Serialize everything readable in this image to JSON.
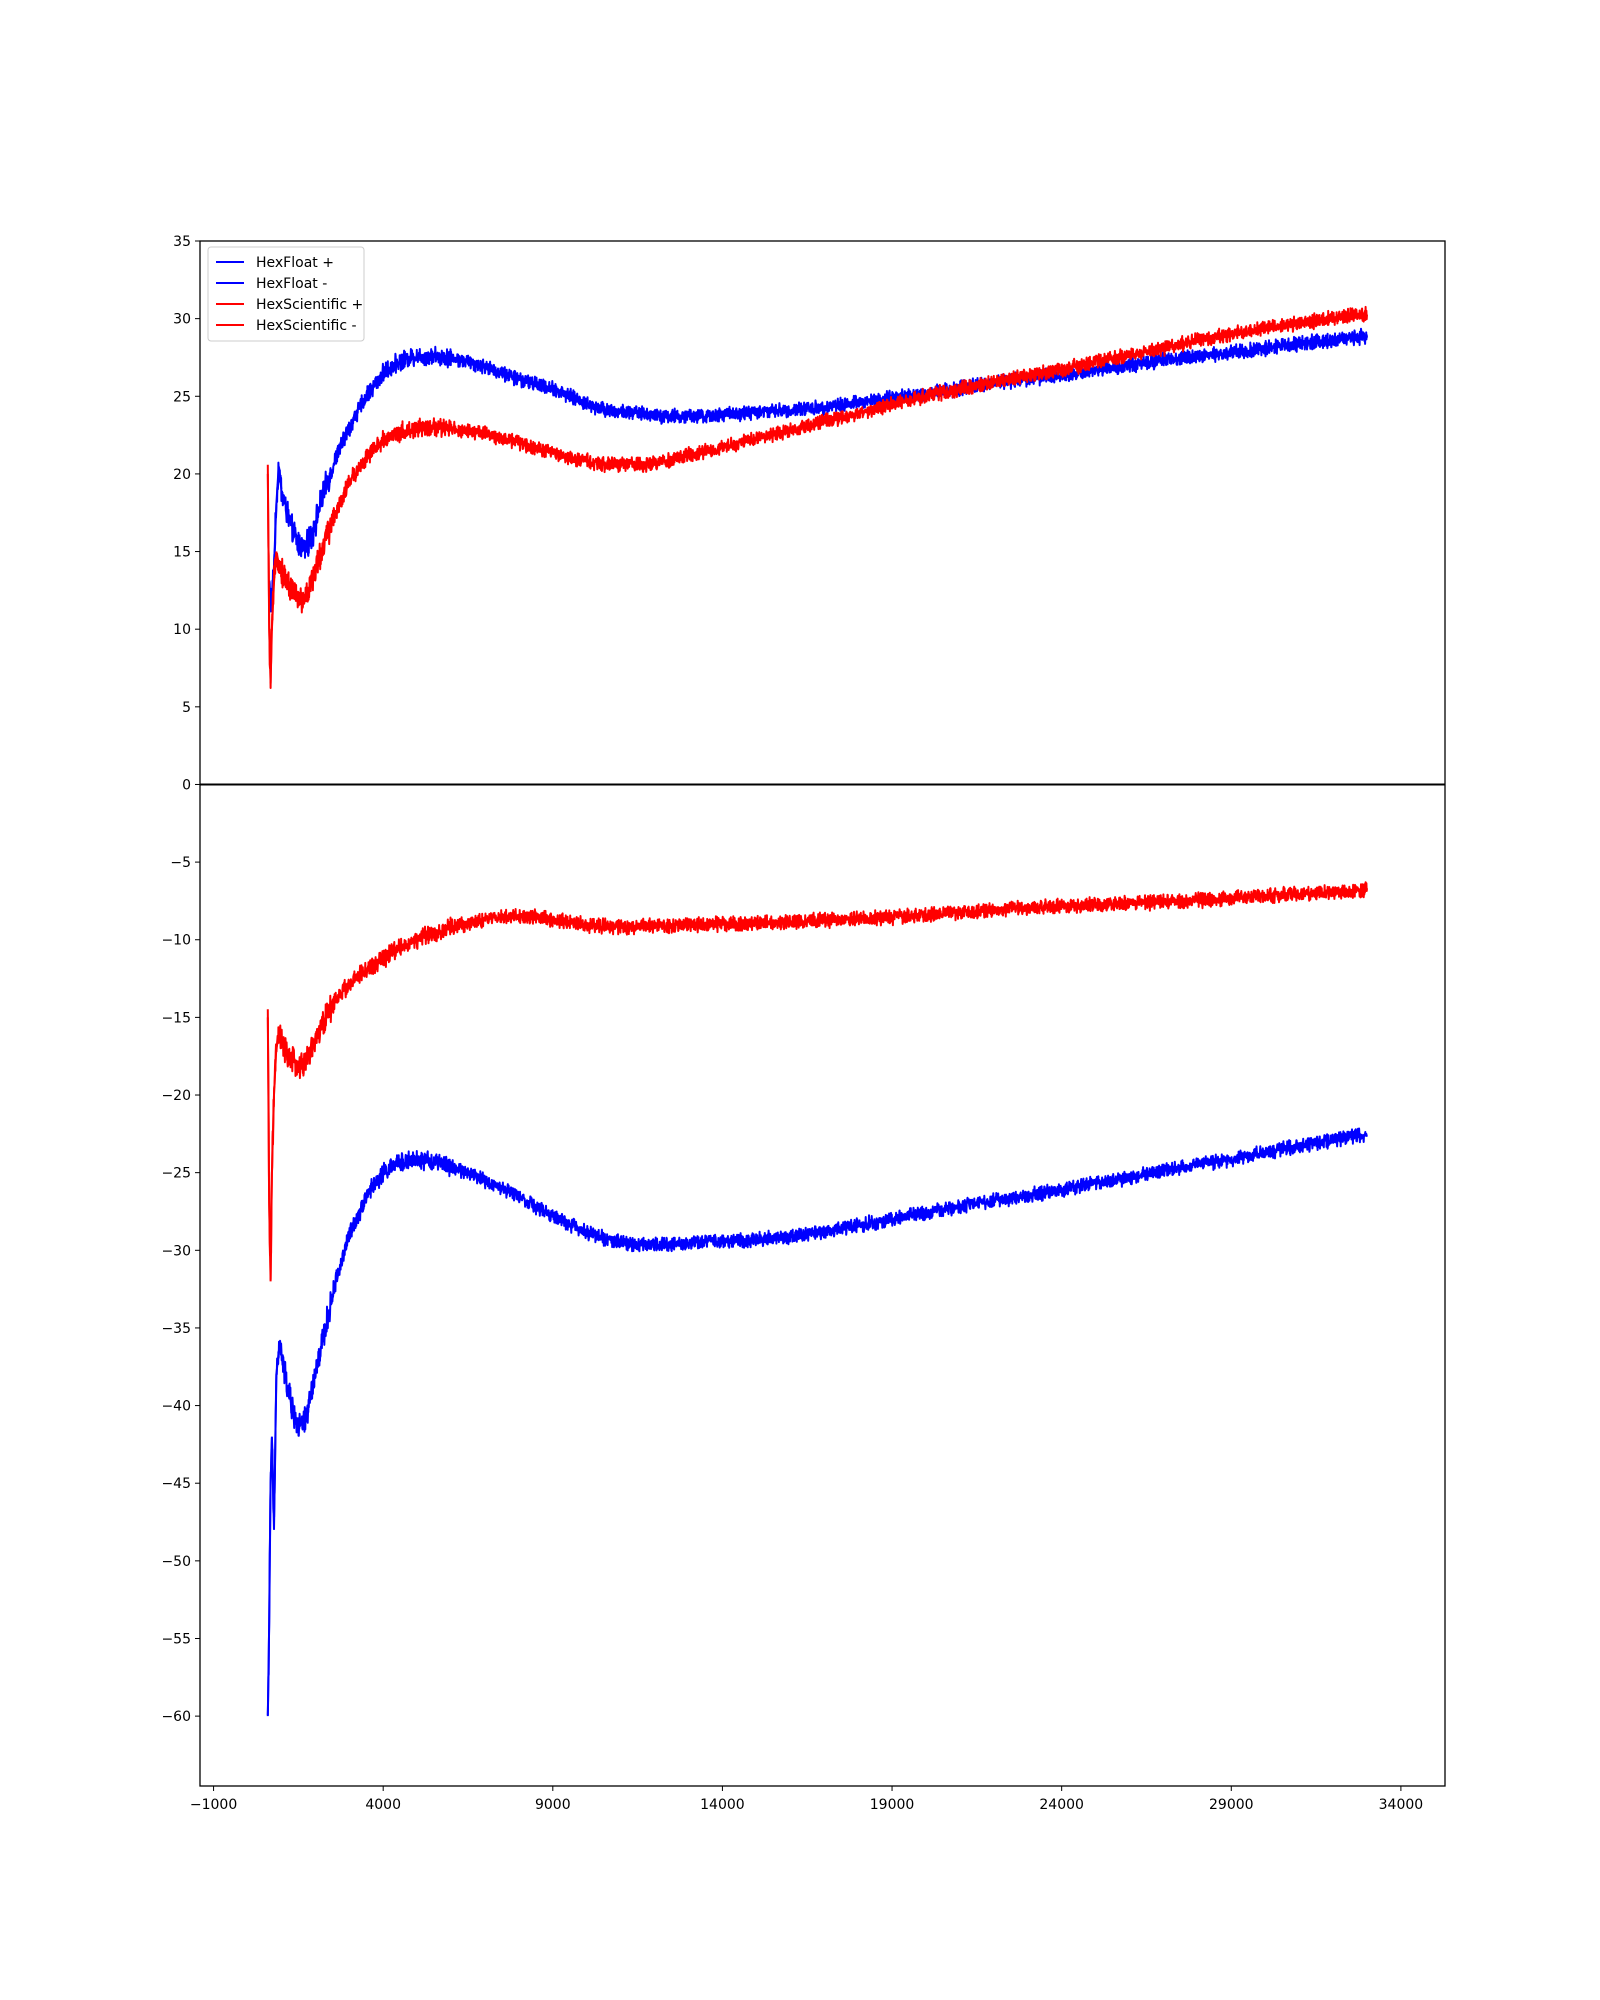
{
  "chart_data": {
    "type": "line",
    "title": "",
    "xlabel": "",
    "ylabel": "",
    "xlim": [
      -1400,
      35300
    ],
    "ylim": [
      -64.5,
      35
    ],
    "x_ticks": [
      -1000,
      4000,
      9000,
      14000,
      19000,
      24000,
      29000,
      34000
    ],
    "x_tick_labels": [
      "−1000",
      "4000",
      "9000",
      "14000",
      "19000",
      "24000",
      "29000",
      "34000"
    ],
    "y_ticks": [
      35,
      30,
      25,
      20,
      15,
      10,
      5,
      0,
      -5,
      -10,
      -15,
      -20,
      -25,
      -30,
      -35,
      -40,
      -45,
      -50,
      -55,
      -60
    ],
    "y_tick_labels": [
      "35",
      "30",
      "25",
      "20",
      "15",
      "10",
      "5",
      "0",
      "−5",
      "−10",
      "−15",
      "−20",
      "−25",
      "−30",
      "−35",
      "−40",
      "−45",
      "−50",
      "−55",
      "−60"
    ],
    "grid": false,
    "zero_line": true,
    "legend_position": "top-left",
    "series": [
      {
        "name": "HexFloat +",
        "color": "#0000ff",
        "x": [
          640,
          700,
          780,
          850,
          920,
          1000,
          1100,
          1300,
          1500,
          1700,
          1900,
          2200,
          2600,
          3000,
          3500,
          4000,
          4500,
          5000,
          5500,
          6000,
          6500,
          7000,
          7500,
          8000,
          8500,
          9000,
          9500,
          10000,
          10500,
          11000,
          11500,
          12000,
          12500,
          13000,
          13500,
          14000,
          15000,
          16000,
          17000,
          18000,
          19000,
          20000,
          21000,
          22000,
          23000,
          24000,
          25000,
          26000,
          27000,
          28000,
          29000,
          30000,
          31000,
          32000,
          33000
        ],
        "y": [
          13,
          11.5,
          14,
          18,
          20.5,
          19,
          18,
          16.5,
          15.5,
          15.2,
          16,
          18.5,
          21,
          23,
          25,
          26.5,
          27.3,
          27.6,
          27.6,
          27.5,
          27.2,
          26.9,
          26.5,
          26.1,
          25.8,
          25.5,
          25,
          24.5,
          24.2,
          24,
          23.9,
          23.8,
          23.7,
          23.7,
          23.7,
          23.8,
          24,
          24.1,
          24.3,
          24.6,
          24.9,
          25.2,
          25.5,
          25.9,
          26.1,
          26.4,
          26.7,
          27,
          27.3,
          27.6,
          27.8,
          28.1,
          28.4,
          28.6,
          28.9
        ]
      },
      {
        "name": "HexFloat -",
        "color": "#0000ff",
        "x": [
          600,
          640,
          680,
          720,
          780,
          850,
          950,
          1100,
          1300,
          1500,
          1700,
          1900,
          2200,
          2600,
          3000,
          3500,
          4000,
          4500,
          5000,
          5500,
          6000,
          6500,
          7000,
          7500,
          8000,
          8500,
          9000,
          9500,
          10000,
          10500,
          11000,
          11500,
          12000,
          12500,
          13000,
          14000,
          15000,
          16000,
          17000,
          18000,
          19000,
          20000,
          21000,
          22000,
          23000,
          24000,
          25000,
          26000,
          27000,
          28000,
          29000,
          30000,
          31000,
          32000,
          33000
        ],
        "y": [
          -60,
          -54,
          -45,
          -42,
          -48,
          -38,
          -36,
          -38,
          -40,
          -41.5,
          -41,
          -39,
          -36,
          -32,
          -29,
          -26.5,
          -25,
          -24.3,
          -24.2,
          -24.3,
          -24.6,
          -25,
          -25.5,
          -26,
          -26.5,
          -27.2,
          -27.8,
          -28.3,
          -28.8,
          -29.2,
          -29.5,
          -29.6,
          -29.6,
          -29.6,
          -29.5,
          -29.4,
          -29.3,
          -29.1,
          -28.8,
          -28.4,
          -28,
          -27.6,
          -27.2,
          -26.8,
          -26.5,
          -26.1,
          -25.7,
          -25.3,
          -24.9,
          -24.5,
          -24.1,
          -23.7,
          -23.3,
          -22.9,
          -22.5
        ]
      },
      {
        "name": "HexScientific +",
        "color": "#ff0000",
        "x": [
          600,
          640,
          680,
          720,
          780,
          850,
          950,
          1050,
          1200,
          1400,
          1600,
          1800,
          2100,
          2500,
          3000,
          3500,
          4000,
          4500,
          5000,
          5500,
          6000,
          6500,
          7000,
          7500,
          8000,
          8500,
          9000,
          9500,
          10000,
          10500,
          11000,
          11500,
          12000,
          12500,
          13000,
          14000,
          15000,
          16000,
          17000,
          18000,
          19000,
          20000,
          21000,
          22000,
          23000,
          24000,
          25000,
          26000,
          27000,
          28000,
          29000,
          30000,
          31000,
          32000,
          33000
        ],
        "y": [
          20,
          10,
          6.5,
          10,
          13,
          15,
          14,
          13.5,
          13,
          12.2,
          11.8,
          12.5,
          14.5,
          17,
          19.5,
          21,
          22.2,
          22.7,
          22.9,
          23,
          22.9,
          22.8,
          22.6,
          22.3,
          22,
          21.7,
          21.4,
          21,
          20.8,
          20.6,
          20.6,
          20.6,
          20.7,
          20.9,
          21.2,
          21.7,
          22.3,
          22.8,
          23.4,
          23.9,
          24.5,
          25,
          25.5,
          25.9,
          26.3,
          26.7,
          27.2,
          27.6,
          28.1,
          28.6,
          29,
          29.4,
          29.7,
          30,
          30.3
        ]
      },
      {
        "name": "HexScientific -",
        "color": "#ff0000",
        "x": [
          600,
          640,
          680,
          720,
          780,
          850,
          950,
          1050,
          1200,
          1400,
          1600,
          1800,
          2000,
          2300,
          2700,
          3200,
          3800,
          4500,
          5200,
          6000,
          6800,
          7600,
          8400,
          9000,
          9600,
          10200,
          11000,
          11800,
          12500,
          13500,
          14500,
          15500,
          16500,
          17500,
          18500,
          19500,
          20500,
          21500,
          22500,
          23500,
          24500,
          25500,
          26500,
          27500,
          28500,
          29500,
          30500,
          31500,
          32500,
          33000
        ],
        "y": [
          -15,
          -27,
          -32,
          -25,
          -20,
          -17,
          -16,
          -17,
          -17.5,
          -18,
          -18.2,
          -17.5,
          -16.5,
          -15,
          -13.5,
          -12.5,
          -11.5,
          -10.5,
          -9.8,
          -9.2,
          -8.8,
          -8.5,
          -8.5,
          -8.7,
          -8.9,
          -9.1,
          -9.2,
          -9.1,
          -9.1,
          -9,
          -9,
          -8.9,
          -8.8,
          -8.7,
          -8.6,
          -8.5,
          -8.3,
          -8.2,
          -8,
          -7.9,
          -7.8,
          -7.7,
          -7.6,
          -7.5,
          -7.4,
          -7.2,
          -7.1,
          -7,
          -6.9,
          -6.8
        ]
      }
    ]
  }
}
